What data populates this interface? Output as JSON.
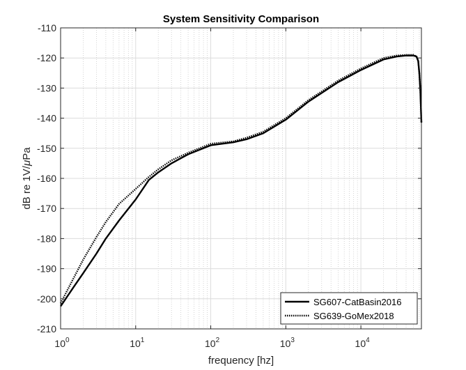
{
  "chart_data": {
    "type": "line",
    "title": "System Sensitivity Comparison",
    "xlabel": "frequency [hz]",
    "ylabel_prefix": "dB re 1V/",
    "ylabel_mu": "μ",
    "ylabel_suffix": "Pa",
    "x_scale": "log",
    "xlim": [
      1,
      64000
    ],
    "ylim": [
      -210,
      -110
    ],
    "y_ticks": [
      -110,
      -120,
      -130,
      -140,
      -150,
      -160,
      -170,
      -180,
      -190,
      -200,
      -210
    ],
    "y_tick_labels": [
      "-110",
      "-120",
      "-130",
      "-140",
      "-150",
      "-160",
      "-170",
      "-180",
      "-190",
      "-200",
      "-210"
    ],
    "x_ticks": [
      1,
      10,
      100,
      1000,
      10000
    ],
    "x_tick_labels": [
      {
        "base": "10",
        "exp": "0"
      },
      {
        "base": "10",
        "exp": "1"
      },
      {
        "base": "10",
        "exp": "2"
      },
      {
        "base": "10",
        "exp": "3"
      },
      {
        "base": "10",
        "exp": "4"
      }
    ],
    "grid": true,
    "minor_grid": true,
    "legend_position": "bottom-right",
    "series": [
      {
        "name": "SG607-CatBasin2016",
        "style": "solid",
        "color": "#000000",
        "x": [
          1,
          1.5,
          2,
          3,
          4,
          6,
          10,
          15,
          20,
          30,
          50,
          100,
          200,
          300,
          500,
          1000,
          2000,
          5000,
          10000,
          20000,
          30000,
          40000,
          50000,
          55000,
          58000,
          60000,
          62000,
          64000
        ],
        "y": [
          -202.5,
          -196,
          -191.5,
          -185,
          -180,
          -174,
          -167,
          -160.5,
          -158,
          -155,
          -152,
          -149,
          -148,
          -147,
          -145,
          -140.5,
          -134.5,
          -128,
          -124,
          -120.5,
          -119.5,
          -119.2,
          -119.2,
          -119.5,
          -121,
          -125,
          -131,
          -141.5
        ]
      },
      {
        "name": "SG639-GoMex2018",
        "style": "dotted",
        "color": "#000000",
        "x": [
          1,
          1.5,
          2,
          3,
          4,
          6,
          10,
          15,
          20,
          30,
          50,
          100,
          200,
          300,
          500,
          1000,
          2000,
          5000,
          10000,
          20000,
          30000,
          40000,
          50000,
          55000,
          58000,
          60000,
          62000,
          64000
        ],
        "y": [
          -201.5,
          -193,
          -187,
          -179.5,
          -174.5,
          -168.5,
          -163.5,
          -159.5,
          -157,
          -154,
          -151.5,
          -148.5,
          -147.7,
          -146.5,
          -144.5,
          -140,
          -134,
          -127.5,
          -123.5,
          -120,
          -119.2,
          -119,
          -119,
          -119.5,
          -121,
          -125,
          -131,
          -141.5
        ]
      }
    ]
  }
}
